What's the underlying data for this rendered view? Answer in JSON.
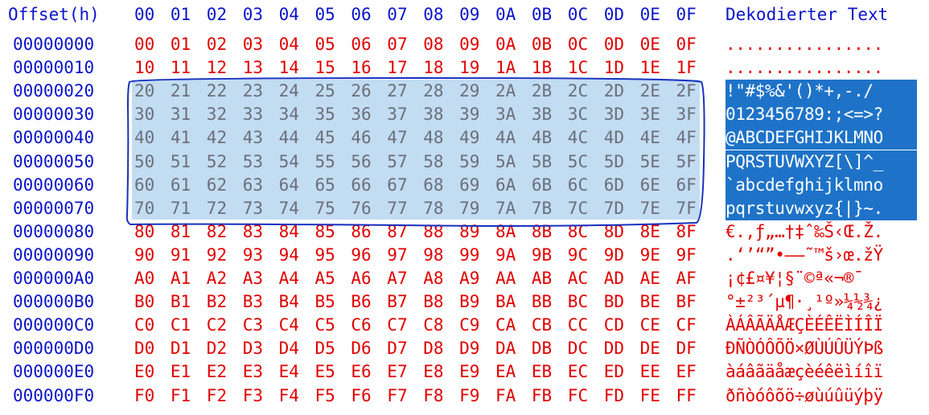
{
  "header": {
    "offset_label": "Offset(h)",
    "columns": [
      "00",
      "01",
      "02",
      "03",
      "04",
      "05",
      "06",
      "07",
      "08",
      "09",
      "0A",
      "0B",
      "0C",
      "0D",
      "0E",
      "0F"
    ],
    "text_label": "Dekodierter Text"
  },
  "colors": {
    "offset": "#0a14c8",
    "hex": "#e00000",
    "hex_selected": "#6b6f7a",
    "selection_fill": "#c2dcf2",
    "text_selection": "#1e73c8",
    "outline": "#1530c0"
  },
  "selection": {
    "first_row": "00000020",
    "last_row": "00000070",
    "range": "20-7F"
  },
  "rows": [
    {
      "offset": "00000000",
      "bytes": [
        "00",
        "01",
        "02",
        "03",
        "04",
        "05",
        "06",
        "07",
        "08",
        "09",
        "0A",
        "0B",
        "0C",
        "0D",
        "0E",
        "0F"
      ],
      "text": "................",
      "selected": false
    },
    {
      "offset": "00000010",
      "bytes": [
        "10",
        "11",
        "12",
        "13",
        "14",
        "15",
        "16",
        "17",
        "18",
        "19",
        "1A",
        "1B",
        "1C",
        "1D",
        "1E",
        "1F"
      ],
      "text": "................",
      "selected": false
    },
    {
      "offset": "00000020",
      "bytes": [
        "20",
        "21",
        "22",
        "23",
        "24",
        "25",
        "26",
        "27",
        "28",
        "29",
        "2A",
        "2B",
        "2C",
        "2D",
        "2E",
        "2F"
      ],
      "text": " !\"#$%&'()*+,-./",
      "selected": true
    },
    {
      "offset": "00000030",
      "bytes": [
        "30",
        "31",
        "32",
        "33",
        "34",
        "35",
        "36",
        "37",
        "38",
        "39",
        "3A",
        "3B",
        "3C",
        "3D",
        "3E",
        "3F"
      ],
      "text": "0123456789:;<=>?",
      "selected": true
    },
    {
      "offset": "00000040",
      "bytes": [
        "40",
        "41",
        "42",
        "43",
        "44",
        "45",
        "46",
        "47",
        "48",
        "49",
        "4A",
        "4B",
        "4C",
        "4D",
        "4E",
        "4F"
      ],
      "text": "@ABCDEFGHIJKLMNO",
      "selected": true
    },
    {
      "offset": "00000050",
      "bytes": [
        "50",
        "51",
        "52",
        "53",
        "54",
        "55",
        "56",
        "57",
        "58",
        "59",
        "5A",
        "5B",
        "5C",
        "5D",
        "5E",
        "5F"
      ],
      "text": "PQRSTUVWXYZ[\\]^_",
      "selected": true
    },
    {
      "offset": "00000060",
      "bytes": [
        "60",
        "61",
        "62",
        "63",
        "64",
        "65",
        "66",
        "67",
        "68",
        "69",
        "6A",
        "6B",
        "6C",
        "6D",
        "6E",
        "6F"
      ],
      "text": "`abcdefghijklmno",
      "selected": true
    },
    {
      "offset": "00000070",
      "bytes": [
        "70",
        "71",
        "72",
        "73",
        "74",
        "75",
        "76",
        "77",
        "78",
        "79",
        "7A",
        "7B",
        "7C",
        "7D",
        "7E",
        "7F"
      ],
      "text": "pqrstuvwxyz{|}~.",
      "selected": true
    },
    {
      "offset": "00000080",
      "bytes": [
        "80",
        "81",
        "82",
        "83",
        "84",
        "85",
        "86",
        "87",
        "88",
        "89",
        "8A",
        "8B",
        "8C",
        "8D",
        "8E",
        "8F"
      ],
      "text": "€.‚ƒ„…†‡ˆ‰Š‹Œ.Ž.",
      "selected": false
    },
    {
      "offset": "00000090",
      "bytes": [
        "90",
        "91",
        "92",
        "93",
        "94",
        "95",
        "96",
        "97",
        "98",
        "99",
        "9A",
        "9B",
        "9C",
        "9D",
        "9E",
        "9F"
      ],
      "text": ".‘’“”•–—˜™š›œ.žŸ",
      "selected": false
    },
    {
      "offset": "000000A0",
      "bytes": [
        "A0",
        "A1",
        "A2",
        "A3",
        "A4",
        "A5",
        "A6",
        "A7",
        "A8",
        "A9",
        "AA",
        "AB",
        "AC",
        "AD",
        "AE",
        "AF"
      ],
      "text": " ¡¢£¤¥¦§¨©ª«¬­®¯",
      "selected": false
    },
    {
      "offset": "000000B0",
      "bytes": [
        "B0",
        "B1",
        "B2",
        "B3",
        "B4",
        "B5",
        "B6",
        "B7",
        "B8",
        "B9",
        "BA",
        "BB",
        "BC",
        "BD",
        "BE",
        "BF"
      ],
      "text": "°±²³´µ¶·¸¹º»¼½¾¿",
      "selected": false
    },
    {
      "offset": "000000C0",
      "bytes": [
        "C0",
        "C1",
        "C2",
        "C3",
        "C4",
        "C5",
        "C6",
        "C7",
        "C8",
        "C9",
        "CA",
        "CB",
        "CC",
        "CD",
        "CE",
        "CF"
      ],
      "text": "ÀÁÂÃÄÅÆÇÈÉÊËÌÍÎÏ",
      "selected": false
    },
    {
      "offset": "000000D0",
      "bytes": [
        "D0",
        "D1",
        "D2",
        "D3",
        "D4",
        "D5",
        "D6",
        "D7",
        "D8",
        "D9",
        "DA",
        "DB",
        "DC",
        "DD",
        "DE",
        "DF"
      ],
      "text": "ÐÑÒÓÔÕÖ×ØÙÚÛÜÝÞß",
      "selected": false
    },
    {
      "offset": "000000E0",
      "bytes": [
        "E0",
        "E1",
        "E2",
        "E3",
        "E4",
        "E5",
        "E6",
        "E7",
        "E8",
        "E9",
        "EA",
        "EB",
        "EC",
        "ED",
        "EE",
        "EF"
      ],
      "text": "àáâãäåæçèéêëìíîï",
      "selected": false
    },
    {
      "offset": "000000F0",
      "bytes": [
        "F0",
        "F1",
        "F2",
        "F3",
        "F4",
        "F5",
        "F6",
        "F7",
        "F8",
        "F9",
        "FA",
        "FB",
        "FC",
        "FD",
        "FE",
        "FF"
      ],
      "text": "ðñòóôõö÷øùúûüýþÿ",
      "selected": false
    }
  ]
}
